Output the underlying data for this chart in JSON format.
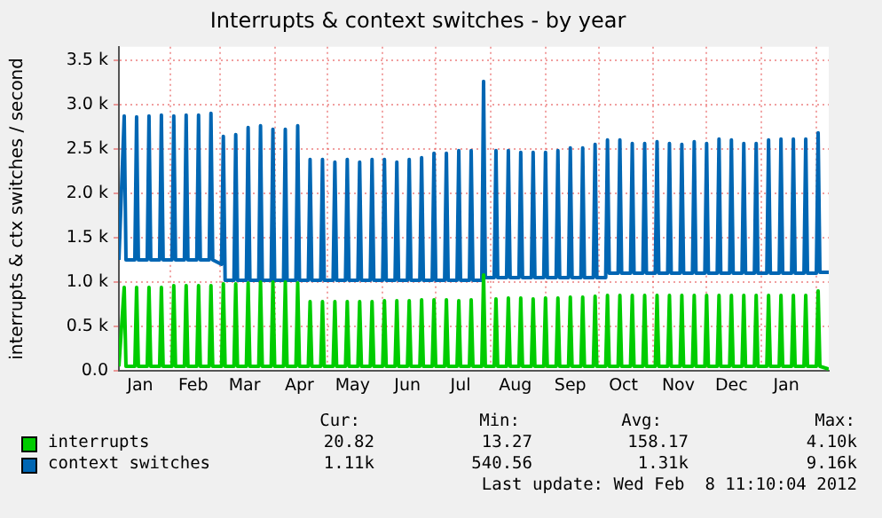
{
  "chart_data": {
    "type": "line",
    "title": "Interrupts & context switches - by year",
    "ylabel": "interrupts & ctx switches / second",
    "x": [
      "2011-01-03",
      "2011-01-06",
      "2011-01-07",
      "2011-01-12",
      "2011-01-13",
      "2011-01-14",
      "2011-01-19",
      "2011-01-20",
      "2011-01-21",
      "2011-01-26",
      "2011-01-27",
      "2011-01-28",
      "2011-02-02",
      "2011-02-03",
      "2011-02-04",
      "2011-02-09",
      "2011-02-10",
      "2011-02-11",
      "2011-02-16",
      "2011-02-17",
      "2011-02-18",
      "2011-02-23",
      "2011-02-24",
      "2011-02-25",
      "2011-03-02",
      "2011-03-03",
      "2011-03-04",
      "2011-03-09",
      "2011-03-10",
      "2011-03-11",
      "2011-03-16",
      "2011-03-17",
      "2011-03-18",
      "2011-03-23",
      "2011-03-24",
      "2011-03-25",
      "2011-03-30",
      "2011-03-31",
      "2011-04-01",
      "2011-04-06",
      "2011-04-07",
      "2011-04-08",
      "2011-04-13",
      "2011-04-14",
      "2011-04-15",
      "2011-04-20",
      "2011-04-21",
      "2011-04-22",
      "2011-04-27",
      "2011-04-28",
      "2011-04-29",
      "2011-05-04",
      "2011-05-05",
      "2011-05-06",
      "2011-05-11",
      "2011-05-12",
      "2011-05-13",
      "2011-05-18",
      "2011-05-19",
      "2011-05-20",
      "2011-05-25",
      "2011-05-26",
      "2011-05-27",
      "2011-06-01",
      "2011-06-02",
      "2011-06-03",
      "2011-06-08",
      "2011-06-09",
      "2011-06-10",
      "2011-06-15",
      "2011-06-16",
      "2011-06-17",
      "2011-06-22",
      "2011-06-23",
      "2011-06-24",
      "2011-06-29",
      "2011-06-30",
      "2011-07-01",
      "2011-07-06",
      "2011-07-07",
      "2011-07-08",
      "2011-07-13",
      "2011-07-14",
      "2011-07-15",
      "2011-07-20",
      "2011-07-21",
      "2011-07-22",
      "2011-07-27",
      "2011-07-28",
      "2011-07-29",
      "2011-08-03",
      "2011-08-04",
      "2011-08-05",
      "2011-08-10",
      "2011-08-11",
      "2011-08-12",
      "2011-08-17",
      "2011-08-18",
      "2011-08-19",
      "2011-08-24",
      "2011-08-25",
      "2011-08-26",
      "2011-08-31",
      "2011-09-01",
      "2011-09-02",
      "2011-09-07",
      "2011-09-08",
      "2011-09-09",
      "2011-09-14",
      "2011-09-15",
      "2011-09-16",
      "2011-09-21",
      "2011-09-22",
      "2011-09-23",
      "2011-09-28",
      "2011-09-29",
      "2011-09-30",
      "2011-10-05",
      "2011-10-06",
      "2011-10-07",
      "2011-10-12",
      "2011-10-13",
      "2011-10-14",
      "2011-10-19",
      "2011-10-20",
      "2011-10-21",
      "2011-10-26",
      "2011-10-27",
      "2011-10-28",
      "2011-11-02",
      "2011-11-03",
      "2011-11-04",
      "2011-11-09",
      "2011-11-10",
      "2011-11-11",
      "2011-11-16",
      "2011-11-17",
      "2011-11-18",
      "2011-11-23",
      "2011-11-24",
      "2011-11-25",
      "2011-11-30",
      "2011-12-01",
      "2011-12-02",
      "2011-12-07",
      "2011-12-08",
      "2011-12-09",
      "2011-12-14",
      "2011-12-15",
      "2011-12-16",
      "2011-12-21",
      "2011-12-22",
      "2011-12-23",
      "2011-12-28",
      "2011-12-29",
      "2011-12-30",
      "2012-01-04",
      "2012-01-05",
      "2012-01-06",
      "2012-01-11",
      "2012-01-12",
      "2012-01-13",
      "2012-01-18",
      "2012-01-19",
      "2012-01-20",
      "2012-01-25",
      "2012-01-26",
      "2012-01-27",
      "2012-02-01",
      "2012-02-02",
      "2012-02-03",
      "2012-02-08"
    ],
    "series": [
      {
        "name": "interrupts",
        "color": "#00cc00",
        "values": [
          50,
          940,
          50,
          50,
          940,
          50,
          50,
          940,
          50,
          50,
          940,
          50,
          50,
          960,
          50,
          50,
          960,
          50,
          50,
          960,
          50,
          50,
          960,
          50,
          50,
          980,
          50,
          50,
          980,
          50,
          50,
          990,
          50,
          50,
          1000,
          50,
          50,
          1000,
          50,
          50,
          1000,
          50,
          50,
          990,
          50,
          50,
          780,
          50,
          50,
          780,
          50,
          50,
          780,
          50,
          50,
          780,
          50,
          50,
          780,
          50,
          50,
          780,
          50,
          50,
          790,
          50,
          50,
          790,
          50,
          50,
          790,
          50,
          50,
          800,
          50,
          50,
          800,
          50,
          50,
          800,
          50,
          50,
          790,
          50,
          50,
          800,
          50,
          50,
          1080,
          50,
          50,
          810,
          50,
          50,
          820,
          50,
          50,
          820,
          50,
          50,
          810,
          50,
          50,
          820,
          50,
          50,
          820,
          50,
          50,
          830,
          50,
          50,
          830,
          50,
          50,
          840,
          50,
          50,
          850,
          50,
          50,
          850,
          50,
          50,
          850,
          50,
          50,
          850,
          50,
          50,
          850,
          50,
          50,
          850,
          50,
          50,
          850,
          50,
          50,
          850,
          50,
          50,
          850,
          50,
          50,
          850,
          50,
          50,
          850,
          50,
          50,
          850,
          50,
          50,
          850,
          50,
          50,
          850,
          50,
          50,
          850,
          50,
          50,
          850,
          50,
          50,
          850,
          50,
          50,
          900,
          50,
          20
        ]
      },
      {
        "name": "context switches",
        "color": "#0066b3",
        "values": [
          1250,
          2870,
          1250,
          1250,
          2860,
          1250,
          1250,
          2870,
          1250,
          1250,
          2880,
          1250,
          1250,
          2870,
          1250,
          1250,
          2880,
          1250,
          1250,
          2880,
          1250,
          1250,
          2900,
          1250,
          1200,
          2640,
          1020,
          1020,
          2660,
          1020,
          1020,
          2740,
          1020,
          1020,
          2760,
          1020,
          1020,
          2720,
          1020,
          1020,
          2720,
          1020,
          1020,
          2760,
          1020,
          1020,
          2380,
          1020,
          1020,
          2380,
          1020,
          1020,
          2350,
          1020,
          1020,
          2380,
          1020,
          1020,
          2350,
          1020,
          1020,
          2380,
          1020,
          1020,
          2380,
          1020,
          1020,
          2350,
          1020,
          1020,
          2380,
          1020,
          1020,
          2400,
          1020,
          1020,
          2450,
          1020,
          1020,
          2450,
          1020,
          1020,
          2480,
          1020,
          1020,
          2480,
          1020,
          1020,
          3260,
          1050,
          1050,
          2480,
          1050,
          1050,
          2480,
          1050,
          1050,
          2460,
          1050,
          1050,
          2460,
          1050,
          1050,
          2460,
          1050,
          1050,
          2480,
          1050,
          1050,
          2510,
          1050,
          1050,
          2510,
          1050,
          1050,
          2550,
          1050,
          1050,
          2600,
          1100,
          1100,
          2600,
          1100,
          1100,
          2560,
          1100,
          1100,
          2560,
          1100,
          1100,
          2580,
          1100,
          1100,
          2560,
          1100,
          1100,
          2550,
          1100,
          1100,
          2580,
          1100,
          1100,
          2560,
          1100,
          1100,
          2610,
          1100,
          1100,
          2600,
          1100,
          1100,
          2560,
          1100,
          1100,
          2560,
          1100,
          1100,
          2600,
          1100,
          1100,
          2610,
          1100,
          1100,
          2610,
          1100,
          1100,
          2610,
          1100,
          1100,
          2680,
          1110,
          1110
        ]
      }
    ],
    "xlim": [
      "2011-01-03",
      "2012-02-08"
    ],
    "xticks": [
      {
        "value": "2011-01-15",
        "label": "Jan"
      },
      {
        "value": "2011-02-01",
        "label": null
      },
      {
        "value": "2011-02-14",
        "label": "Feb"
      },
      {
        "value": "2011-03-01",
        "label": null
      },
      {
        "value": "2011-03-15",
        "label": "Mar"
      },
      {
        "value": "2011-04-01",
        "label": null
      },
      {
        "value": "2011-04-15",
        "label": "Apr"
      },
      {
        "value": "2011-05-01",
        "label": null
      },
      {
        "value": "2011-05-15",
        "label": "May"
      },
      {
        "value": "2011-06-01",
        "label": null
      },
      {
        "value": "2011-06-15",
        "label": "Jun"
      },
      {
        "value": "2011-07-01",
        "label": null
      },
      {
        "value": "2011-07-15",
        "label": "Jul"
      },
      {
        "value": "2011-08-01",
        "label": null
      },
      {
        "value": "2011-08-15",
        "label": "Aug"
      },
      {
        "value": "2011-09-01",
        "label": null
      },
      {
        "value": "2011-09-15",
        "label": "Sep"
      },
      {
        "value": "2011-10-01",
        "label": null
      },
      {
        "value": "2011-10-15",
        "label": "Oct"
      },
      {
        "value": "2011-11-01",
        "label": null
      },
      {
        "value": "2011-11-15",
        "label": "Nov"
      },
      {
        "value": "2011-12-01",
        "label": null
      },
      {
        "value": "2011-12-15",
        "label": "Dec"
      },
      {
        "value": "2012-01-01",
        "label": null
      },
      {
        "value": "2012-01-15",
        "label": "Jan"
      },
      {
        "value": "2012-02-01",
        "label": null
      }
    ],
    "ylim": [
      0,
      3650
    ],
    "yticks": [
      {
        "value": 0,
        "label": "0.0"
      },
      {
        "value": 500,
        "label": "0.5 k"
      },
      {
        "value": 1000,
        "label": "1.0 k"
      },
      {
        "value": 1500,
        "label": "1.5 k"
      },
      {
        "value": 2000,
        "label": "2.0 k"
      },
      {
        "value": 2500,
        "label": "2.5 k"
      },
      {
        "value": 3000,
        "label": "3.0 k"
      },
      {
        "value": 3500,
        "label": "3.5 k"
      }
    ],
    "grid": true,
    "legend": "bottom",
    "marker": "none",
    "line_style": "solid",
    "annotations": [
      "Cur:",
      "Min:",
      "Avg:",
      "Max:",
      "20.82",
      "13.27",
      "158.17",
      "4.10k",
      "1.11k",
      "540.56",
      "1.31k",
      "9.16k",
      "Last update: Wed Feb  8 11:10:04 2012"
    ]
  }
}
